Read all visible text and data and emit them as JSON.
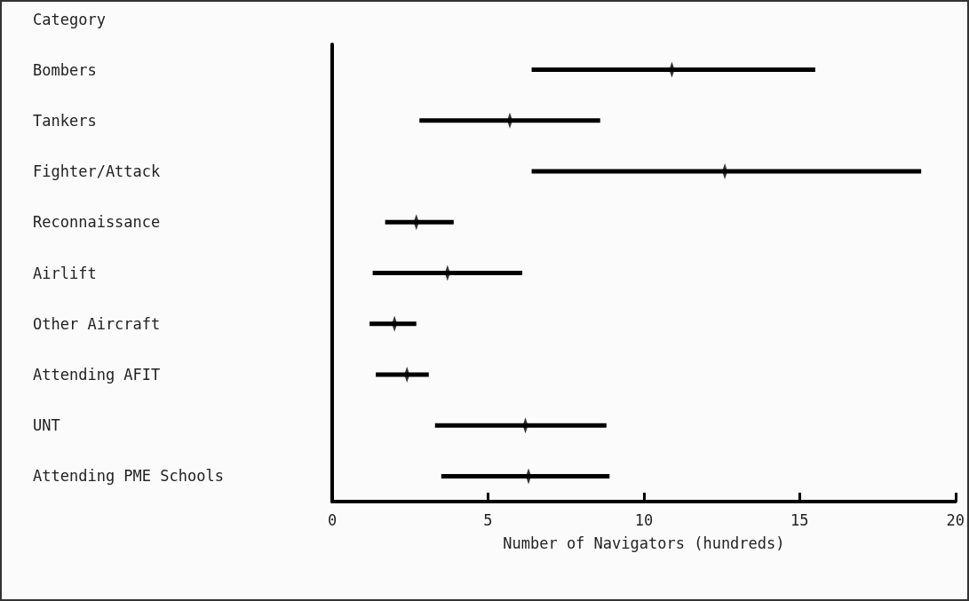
{
  "chart_data": {
    "type": "bar",
    "orientation": "horizontal",
    "ylabel": "Category",
    "xlabel": "Number of Navigators (hundreds)",
    "categories": [
      "Bombers",
      "Tankers",
      "Fighter/Attack",
      "Reconnaissance",
      "Airlift",
      "Other Aircraft",
      "Attending AFIT",
      "UNT",
      "Attending PME Schools"
    ],
    "series": [
      {
        "color": "#000000",
        "base": [
          6.4,
          2.8,
          6.4,
          1.7,
          1.3,
          1.2,
          1.4,
          3.3,
          3.5
        ],
        "values": [
          9.1,
          5.8,
          12.5,
          2.2,
          4.8,
          1.5,
          1.7,
          5.5,
          5.4
        ]
      },
      {
        "type": "scatter",
        "color": "#000000",
        "values": [
          10.9,
          5.7,
          12.6,
          2.7,
          3.7,
          2.0,
          2.4,
          6.2,
          6.3
        ]
      }
    ],
    "xlim": [
      0,
      20
    ],
    "xticks": [
      0,
      5,
      10,
      15,
      20
    ],
    "grid": false
  }
}
